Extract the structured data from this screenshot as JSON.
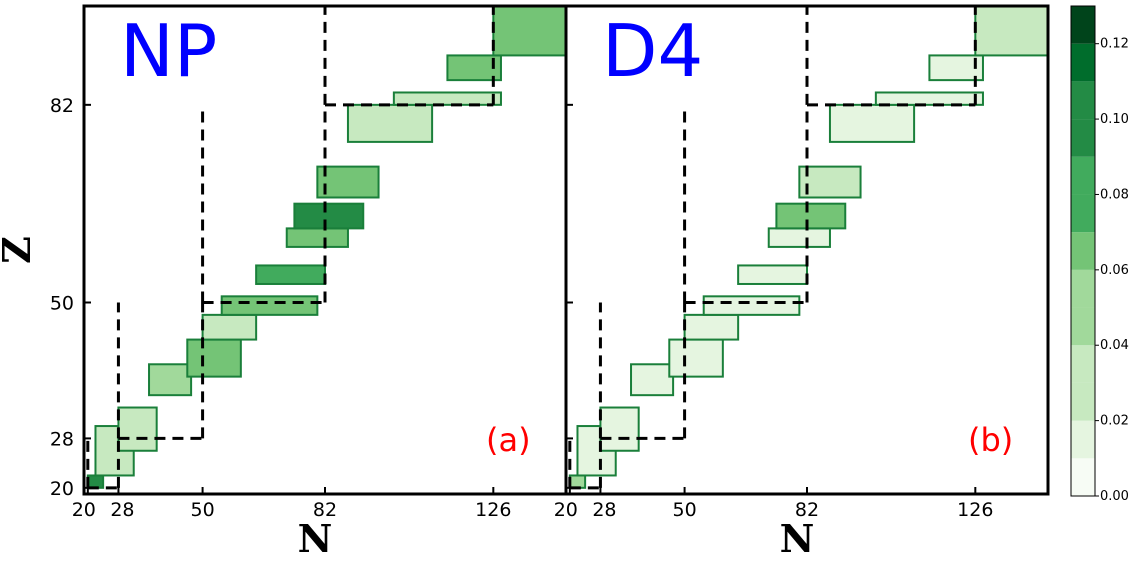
{
  "chart_data": {
    "type": "heatmap",
    "xlabel": "N",
    "ylabel": "Z",
    "xlim": [
      19,
      145
    ],
    "ylim": [
      19,
      98
    ],
    "xticks": [
      20,
      28,
      50,
      82,
      126
    ],
    "yticks": [
      20,
      28,
      50,
      82
    ],
    "magic_numbers": [
      20,
      28,
      50,
      82,
      126
    ],
    "colorbar": {
      "min": 0.0,
      "max": 0.13,
      "levels": 13,
      "ticks": [
        "0.00",
        "0.02",
        "0.04",
        "0.06",
        "0.08",
        "0.10",
        "0.12"
      ],
      "colors": [
        "#f7fcf5",
        "#e5f5e0",
        "#c7e9c0",
        "#a1d99b",
        "#74c476",
        "#41ab5d",
        "#238b45",
        "#006d2c",
        "#00441b"
      ]
    },
    "panels": [
      {
        "title": "NP",
        "label": "(a)",
        "title_color": "#0000ff",
        "label_color": "#ff0000",
        "regions": [
          {
            "n0": 20,
            "n1": 24,
            "z0": 20,
            "z1": 22,
            "v": 0.09
          },
          {
            "n0": 22,
            "n1": 32,
            "z0": 22,
            "z1": 30,
            "v": 0.04
          },
          {
            "n0": 28,
            "n1": 38,
            "z0": 26,
            "z1": 33,
            "v": 0.03
          },
          {
            "n0": 36,
            "n1": 47,
            "z0": 35,
            "z1": 40,
            "v": 0.05
          },
          {
            "n0": 46,
            "n1": 60,
            "z0": 38,
            "z1": 44,
            "v": 0.07
          },
          {
            "n0": 50,
            "n1": 64,
            "z0": 44,
            "z1": 48,
            "v": 0.03
          },
          {
            "n0": 55,
            "n1": 80,
            "z0": 48,
            "z1": 51,
            "v": 0.06
          },
          {
            "n0": 64,
            "n1": 82,
            "z0": 53,
            "z1": 56,
            "v": 0.08
          },
          {
            "n0": 72,
            "n1": 88,
            "z0": 59,
            "z1": 62,
            "v": 0.06
          },
          {
            "n0": 74,
            "n1": 92,
            "z0": 62,
            "z1": 66,
            "v": 0.09
          },
          {
            "n0": 80,
            "n1": 96,
            "z0": 67,
            "z1": 72,
            "v": 0.07
          },
          {
            "n0": 88,
            "n1": 110,
            "z0": 76,
            "z1": 82,
            "v": 0.04
          },
          {
            "n0": 100,
            "n1": 128,
            "z0": 82,
            "z1": 84,
            "v": 0.03
          },
          {
            "n0": 114,
            "n1": 128,
            "z0": 86,
            "z1": 90,
            "v": 0.06
          },
          {
            "n0": 126,
            "n1": 146,
            "z0": 90,
            "z1": 98,
            "v": 0.07
          }
        ]
      },
      {
        "title": "D4",
        "label": "(b)",
        "title_color": "#0000ff",
        "label_color": "#ff0000",
        "regions": [
          {
            "n0": 20,
            "n1": 24,
            "z0": 20,
            "z1": 22,
            "v": 0.05
          },
          {
            "n0": 22,
            "n1": 32,
            "z0": 22,
            "z1": 30,
            "v": 0.02
          },
          {
            "n0": 28,
            "n1": 38,
            "z0": 26,
            "z1": 33,
            "v": 0.02
          },
          {
            "n0": 36,
            "n1": 47,
            "z0": 35,
            "z1": 40,
            "v": 0.02
          },
          {
            "n0": 46,
            "n1": 60,
            "z0": 38,
            "z1": 44,
            "v": 0.02
          },
          {
            "n0": 50,
            "n1": 64,
            "z0": 44,
            "z1": 48,
            "v": 0.02
          },
          {
            "n0": 55,
            "n1": 80,
            "z0": 48,
            "z1": 51,
            "v": 0.02
          },
          {
            "n0": 64,
            "n1": 82,
            "z0": 53,
            "z1": 56,
            "v": 0.02
          },
          {
            "n0": 72,
            "n1": 88,
            "z0": 59,
            "z1": 62,
            "v": 0.02
          },
          {
            "n0": 74,
            "n1": 92,
            "z0": 62,
            "z1": 66,
            "v": 0.06
          },
          {
            "n0": 80,
            "n1": 96,
            "z0": 67,
            "z1": 72,
            "v": 0.03
          },
          {
            "n0": 88,
            "n1": 110,
            "z0": 76,
            "z1": 82,
            "v": 0.01
          },
          {
            "n0": 100,
            "n1": 128,
            "z0": 82,
            "z1": 84,
            "v": 0.01
          },
          {
            "n0": 114,
            "n1": 128,
            "z0": 86,
            "z1": 90,
            "v": 0.02
          },
          {
            "n0": 126,
            "n1": 146,
            "z0": 90,
            "z1": 98,
            "v": 0.03
          }
        ]
      }
    ]
  }
}
